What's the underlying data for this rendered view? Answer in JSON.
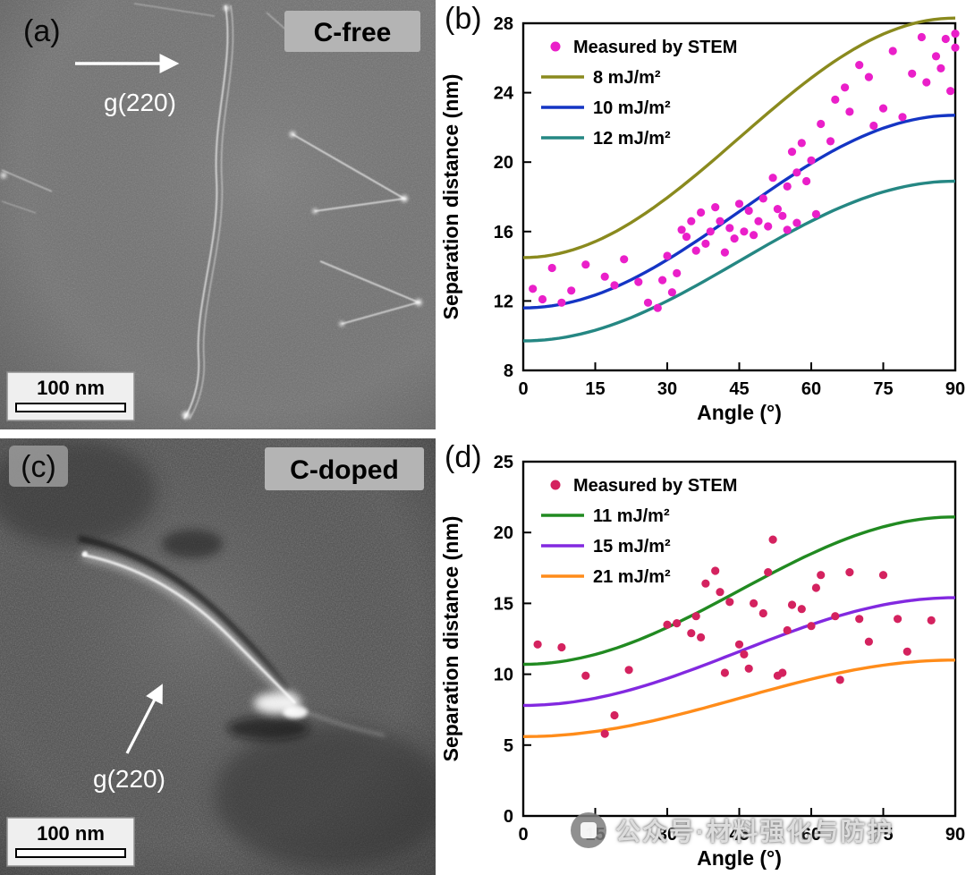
{
  "figure": {
    "panel_a": {
      "label": "(a)",
      "tag": "C-free",
      "g_vector": "g(220)",
      "scale_bar": "100 nm"
    },
    "panel_b": {
      "label": "(b)"
    },
    "panel_c": {
      "label": "(c)",
      "tag": "C-doped",
      "g_vector": "g(220)",
      "scale_bar": "100 nm"
    },
    "panel_d": {
      "label": "(d)"
    }
  },
  "watermark": {
    "text": "公众号·材料强化与防护"
  },
  "chart_data": [
    {
      "panel": "b",
      "type": "scatter",
      "title": "",
      "xlabel": "Angle (°)",
      "ylabel": "Separation distance (nm)",
      "xlim": [
        0,
        90
      ],
      "ylim": [
        8,
        28
      ],
      "xticks": [
        0,
        15,
        30,
        45,
        60,
        75,
        90
      ],
      "yticks": [
        8,
        12,
        16,
        20,
        24,
        28
      ],
      "grid": false,
      "legend_position": "inside top-left",
      "scatter": {
        "label": "Measured by STEM",
        "color": "#ea1fc9",
        "points": [
          [
            2,
            12.7
          ],
          [
            4,
            12.1
          ],
          [
            6,
            13.9
          ],
          [
            8,
            11.9
          ],
          [
            10,
            12.6
          ],
          [
            13,
            14.1
          ],
          [
            17,
            13.4
          ],
          [
            19,
            12.9
          ],
          [
            21,
            14.4
          ],
          [
            24,
            13.1
          ],
          [
            26,
            11.9
          ],
          [
            28,
            11.6
          ],
          [
            29,
            13.2
          ],
          [
            30,
            14.6
          ],
          [
            31,
            12.5
          ],
          [
            32,
            13.6
          ],
          [
            33,
            16.1
          ],
          [
            34,
            15.7
          ],
          [
            35,
            16.6
          ],
          [
            36,
            14.9
          ],
          [
            37,
            17.1
          ],
          [
            38,
            15.3
          ],
          [
            39,
            16.0
          ],
          [
            40,
            17.4
          ],
          [
            41,
            16.6
          ],
          [
            42,
            14.8
          ],
          [
            43,
            16.2
          ],
          [
            44,
            15.6
          ],
          [
            45,
            17.6
          ],
          [
            46,
            16.0
          ],
          [
            47,
            17.2
          ],
          [
            48,
            15.8
          ],
          [
            49,
            16.6
          ],
          [
            50,
            17.9
          ],
          [
            51,
            16.3
          ],
          [
            52,
            19.1
          ],
          [
            53,
            17.3
          ],
          [
            54,
            16.9
          ],
          [
            55,
            18.6
          ],
          [
            55,
            16.1
          ],
          [
            56,
            20.6
          ],
          [
            57,
            19.4
          ],
          [
            57,
            16.5
          ],
          [
            58,
            21.1
          ],
          [
            59,
            18.9
          ],
          [
            60,
            20.1
          ],
          [
            61,
            17.0
          ],
          [
            62,
            22.2
          ],
          [
            64,
            21.2
          ],
          [
            65,
            23.6
          ],
          [
            67,
            24.3
          ],
          [
            68,
            22.9
          ],
          [
            70,
            25.6
          ],
          [
            72,
            24.9
          ],
          [
            73,
            22.1
          ],
          [
            75,
            23.1
          ],
          [
            77,
            26.4
          ],
          [
            79,
            22.6
          ],
          [
            81,
            25.1
          ],
          [
            83,
            27.2
          ],
          [
            84,
            24.6
          ],
          [
            86,
            26.1
          ],
          [
            87,
            25.4
          ],
          [
            88,
            27.1
          ],
          [
            89,
            24.1
          ],
          [
            90,
            26.6
          ],
          [
            90,
            27.4
          ]
        ]
      },
      "curves": [
        {
          "label": "8 mJ/m²",
          "color": "#8a8a1e",
          "start": 14.5,
          "end": 28.3,
          "shape": "S-curve (1-cos2θ)/2"
        },
        {
          "label": "10 mJ/m²",
          "color": "#1435c4",
          "start": 11.6,
          "end": 22.7,
          "shape": "S-curve (1-cos2θ)/2"
        },
        {
          "label": "12 mJ/m²",
          "color": "#258783",
          "start": 9.7,
          "end": 18.9,
          "shape": "S-curve (1-cos2θ)/2"
        }
      ]
    },
    {
      "panel": "d",
      "type": "scatter",
      "title": "",
      "xlabel": "Angle (°)",
      "ylabel": "Separation distance (nm)",
      "xlim": [
        0,
        90
      ],
      "ylim": [
        0,
        25
      ],
      "xticks": [
        0,
        15,
        30,
        45,
        60,
        75,
        90
      ],
      "yticks": [
        0,
        5,
        10,
        15,
        20,
        25
      ],
      "grid": false,
      "legend_position": "inside top-left",
      "scatter": {
        "label": "Measured by STEM",
        "color": "#d4225f",
        "points": [
          [
            3,
            12.1
          ],
          [
            8,
            11.9
          ],
          [
            13,
            9.9
          ],
          [
            17,
            5.8
          ],
          [
            19,
            7.1
          ],
          [
            22,
            10.3
          ],
          [
            30,
            13.5
          ],
          [
            32,
            13.6
          ],
          [
            35,
            12.9
          ],
          [
            36,
            14.1
          ],
          [
            37,
            12.6
          ],
          [
            38,
            16.4
          ],
          [
            40,
            17.3
          ],
          [
            41,
            15.8
          ],
          [
            42,
            10.1
          ],
          [
            43,
            15.1
          ],
          [
            45,
            12.1
          ],
          [
            46,
            11.4
          ],
          [
            47,
            10.4
          ],
          [
            48,
            15.0
          ],
          [
            50,
            14.3
          ],
          [
            51,
            17.2
          ],
          [
            52,
            19.5
          ],
          [
            53,
            9.9
          ],
          [
            54,
            10.1
          ],
          [
            55,
            13.1
          ],
          [
            56,
            14.9
          ],
          [
            58,
            14.6
          ],
          [
            60,
            13.4
          ],
          [
            61,
            16.1
          ],
          [
            62,
            17.0
          ],
          [
            65,
            14.1
          ],
          [
            66,
            9.6
          ],
          [
            68,
            17.2
          ],
          [
            70,
            13.9
          ],
          [
            72,
            12.3
          ],
          [
            75,
            17.0
          ],
          [
            78,
            13.9
          ],
          [
            80,
            11.6
          ],
          [
            85,
            13.8
          ]
        ]
      },
      "curves": [
        {
          "label": "11 mJ/m²",
          "color": "#218a21",
          "start": 10.7,
          "end": 21.1,
          "shape": "S-curve (1-cos2θ)/2"
        },
        {
          "label": "15 mJ/m²",
          "color": "#8229e0",
          "start": 7.8,
          "end": 15.4,
          "shape": "S-curve (1-cos2θ)/2"
        },
        {
          "label": "21 mJ/m²",
          "color": "#ff8c1a",
          "start": 5.6,
          "end": 11.0,
          "shape": "S-curve (1-cos2θ)/2"
        }
      ]
    }
  ]
}
